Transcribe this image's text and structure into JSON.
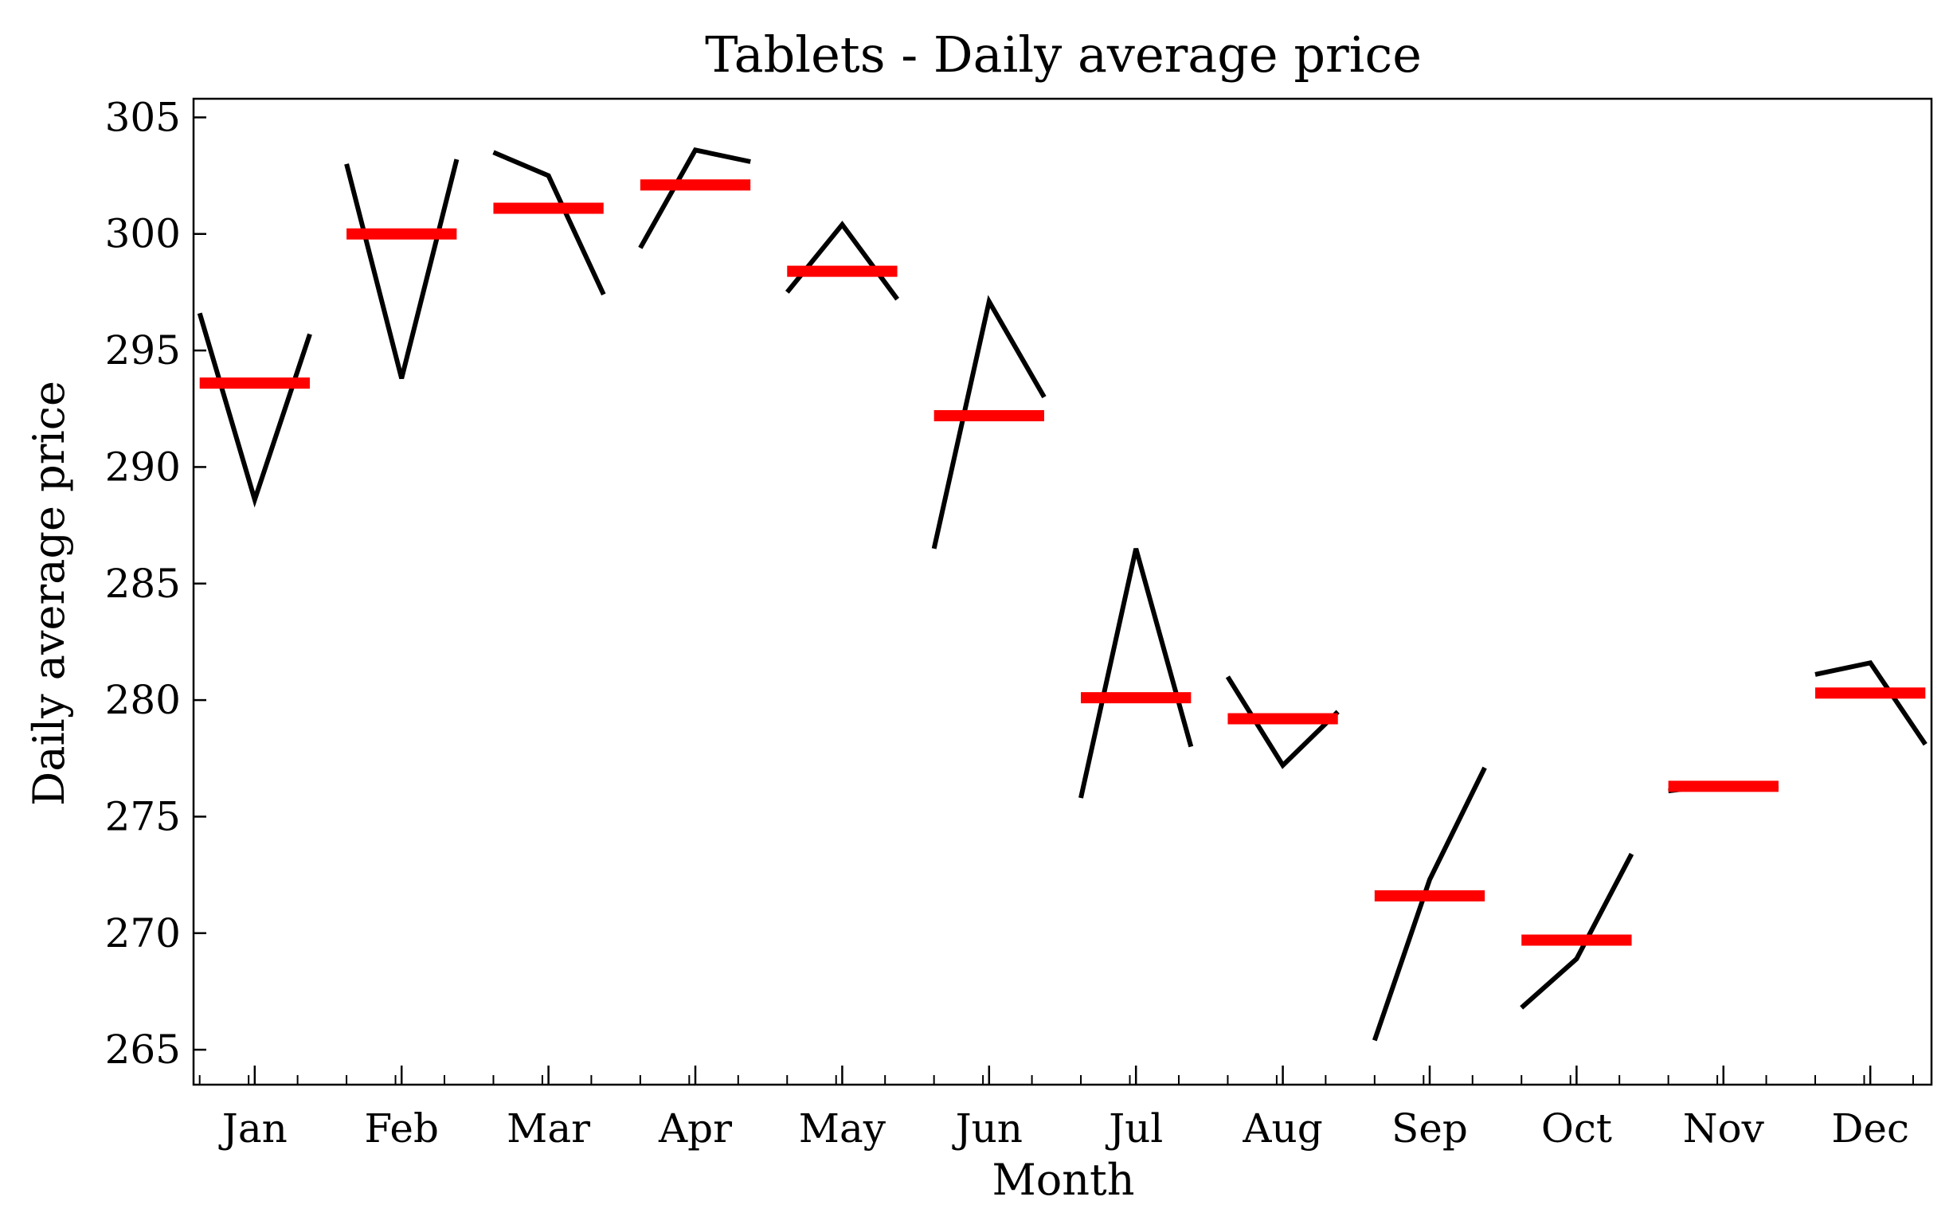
{
  "chart_data": {
    "type": "line",
    "title": "Tablets - Daily average price",
    "xlabel": "Month",
    "ylabel": "Daily average price",
    "ylim": [
      263.5,
      305.8
    ],
    "yticks": [
      265,
      270,
      275,
      280,
      285,
      290,
      295,
      300,
      305
    ],
    "grid": false,
    "colors": {
      "line": "#000000",
      "mean": "#ff0000"
    },
    "months": [
      {
        "label": "Jan",
        "values": [
          296.6,
          288.6,
          295.7
        ],
        "mean": 293.6
      },
      {
        "label": "Feb",
        "values": [
          303.0,
          293.8,
          303.2
        ],
        "mean": 300.0
      },
      {
        "label": "Mar",
        "values": [
          303.5,
          302.5,
          297.4
        ],
        "mean": 301.1
      },
      {
        "label": "Apr",
        "values": [
          299.4,
          303.6,
          303.1
        ],
        "mean": 302.1
      },
      {
        "label": "May",
        "values": [
          297.5,
          300.4,
          297.2
        ],
        "mean": 298.4
      },
      {
        "label": "Jun",
        "values": [
          286.5,
          297.1,
          293.0
        ],
        "mean": 292.2
      },
      {
        "label": "Jul",
        "values": [
          275.8,
          286.5,
          278.0
        ],
        "mean": 280.1
      },
      {
        "label": "Aug",
        "values": [
          281.0,
          277.2,
          279.5
        ],
        "mean": 279.2
      },
      {
        "label": "Sep",
        "values": [
          265.4,
          272.3,
          277.1
        ],
        "mean": 271.6
      },
      {
        "label": "Oct",
        "values": [
          266.8,
          268.9,
          273.4
        ],
        "mean": 269.7
      },
      {
        "label": "Nov",
        "values": [
          276.1,
          276.4,
          276.2
        ],
        "mean": 276.3
      },
      {
        "label": "Dec",
        "values": [
          281.1,
          281.6,
          278.1
        ],
        "mean": 280.3
      }
    ]
  }
}
